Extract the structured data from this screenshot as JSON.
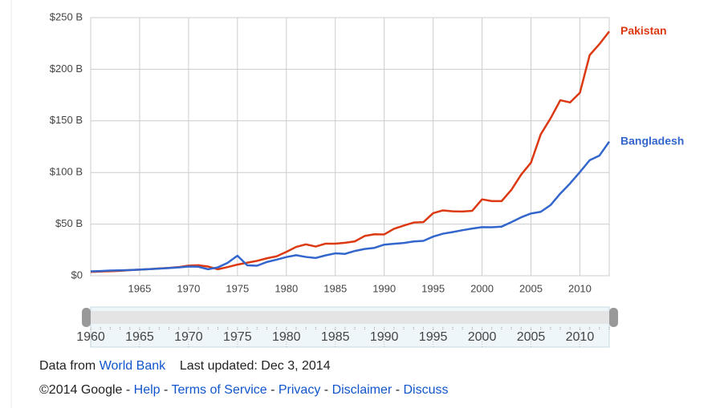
{
  "chart_data": {
    "type": "line",
    "x": [
      1960,
      1961,
      1962,
      1963,
      1964,
      1965,
      1966,
      1967,
      1968,
      1969,
      1970,
      1971,
      1972,
      1973,
      1974,
      1975,
      1976,
      1977,
      1978,
      1979,
      1980,
      1981,
      1982,
      1983,
      1984,
      1985,
      1986,
      1987,
      1988,
      1989,
      1990,
      1991,
      1992,
      1993,
      1994,
      1995,
      1996,
      1997,
      1998,
      1999,
      2000,
      2001,
      2002,
      2003,
      2004,
      2005,
      2006,
      2007,
      2008,
      2009,
      2010,
      2011,
      2012,
      2013
    ],
    "series": [
      {
        "name": "Pakistan",
        "color": "#dc3912",
        "values": [
          3.7,
          4.1,
          4.4,
          4.8,
          5.4,
          5.9,
          6.4,
          7.1,
          7.6,
          8.4,
          9.8,
          10.2,
          8.9,
          6.3,
          8.4,
          10.8,
          12.6,
          14.4,
          16.9,
          18.8,
          23.1,
          27.9,
          30.4,
          28.3,
          31.1,
          31.1,
          31.9,
          33.3,
          38.5,
          40.2,
          40.0,
          45.5,
          48.6,
          51.5,
          51.9,
          60.6,
          63.3,
          62.4,
          62.2,
          62.9,
          74.0,
          72.3,
          72.3,
          83.2,
          98.0,
          109.5,
          137.0,
          152.4,
          170.0,
          167.9,
          177.2,
          213.7,
          224.4,
          236.6
        ]
      },
      {
        "name": "Bangladesh",
        "color": "#3366cc",
        "values": [
          4.3,
          4.6,
          5.0,
          5.2,
          5.5,
          5.9,
          6.4,
          6.9,
          7.5,
          8.1,
          8.9,
          8.7,
          6.3,
          8.1,
          12.5,
          19.4,
          10.1,
          9.7,
          13.3,
          15.6,
          18.1,
          19.9,
          18.2,
          17.2,
          19.7,
          21.7,
          21.2,
          24.0,
          25.9,
          27.0,
          30.1,
          31.0,
          31.7,
          33.2,
          33.8,
          37.9,
          40.7,
          42.3,
          44.1,
          45.7,
          47.1,
          47.0,
          47.6,
          51.9,
          56.6,
          60.3,
          61.9,
          68.4,
          79.6,
          89.4,
          100.4,
          111.9,
          116.4,
          129.9
        ]
      }
    ],
    "xlim": [
      1960,
      2013
    ],
    "xticks": [
      1965,
      1970,
      1975,
      1980,
      1985,
      1990,
      1995,
      2000,
      2005,
      2010
    ],
    "ylim": [
      0,
      250
    ],
    "yticks": [
      {
        "value": 0,
        "label": "$0"
      },
      {
        "value": 50,
        "label": "$50 B"
      },
      {
        "value": 100,
        "label": "$100 B"
      },
      {
        "value": 150,
        "label": "$150 B"
      },
      {
        "value": 200,
        "label": "$200 B"
      },
      {
        "value": 250,
        "label": "$250 B"
      }
    ],
    "grid": true,
    "range_selector": {
      "ticks": [
        1960,
        1965,
        1970,
        1975,
        1980,
        1985,
        1990,
        1995,
        2000,
        2005,
        2010
      ]
    }
  },
  "footer": {
    "source_prefix": "Data from",
    "source_name": "World Bank",
    "last_updated": "Last updated: Dec 3, 2014",
    "copyright": "©2014 Google",
    "separator": "-",
    "links": [
      "Help",
      "Terms of Service",
      "Privacy",
      "Disclaimer",
      "Discuss"
    ]
  }
}
